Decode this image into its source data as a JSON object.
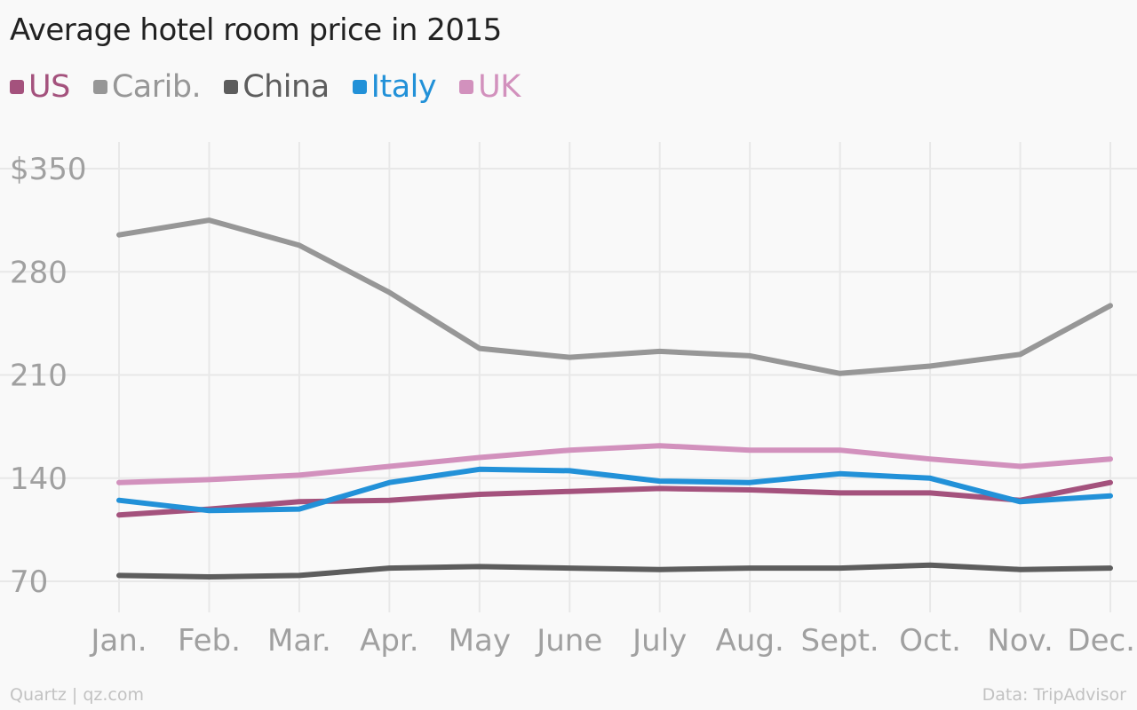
{
  "chart_data": {
    "type": "line",
    "title": "Average hotel room price in 2015",
    "categories": [
      "Jan.",
      "Feb.",
      "Mar.",
      "Apr.",
      "May",
      "June",
      "July",
      "Aug.",
      "Sept.",
      "Oct.",
      "Nov.",
      "Dec."
    ],
    "y_ticks": [
      "$350",
      "280",
      "210",
      "140",
      "70"
    ],
    "y_tick_values": [
      350,
      280,
      210,
      140,
      70
    ],
    "ylim": [
      70,
      350
    ],
    "grid": true,
    "legend_position": "top-left",
    "series": [
      {
        "name": "US",
        "color": "#a4527d",
        "values": [
          115,
          119,
          124,
          125,
          129,
          131,
          133,
          132,
          130,
          130,
          125,
          137
        ]
      },
      {
        "name": "Carib.",
        "color": "#979797",
        "values": [
          305,
          315,
          298,
          266,
          228,
          222,
          226,
          223,
          211,
          216,
          224,
          257
        ]
      },
      {
        "name": "China",
        "color": "#5d5d5d",
        "values": [
          74,
          73,
          74,
          79,
          80,
          79,
          78,
          79,
          79,
          81,
          78,
          79
        ]
      },
      {
        "name": "Italy",
        "color": "#2291d8",
        "values": [
          125,
          118,
          119,
          137,
          146,
          145,
          138,
          137,
          143,
          140,
          124,
          128
        ]
      },
      {
        "name": "UK",
        "color": "#d291bd",
        "values": [
          137,
          139,
          142,
          148,
          154,
          159,
          162,
          159,
          159,
          153,
          148,
          153
        ]
      }
    ]
  },
  "footer": {
    "source_left": "Quartz | qz.com",
    "source_right": "Data: TripAdvisor"
  }
}
